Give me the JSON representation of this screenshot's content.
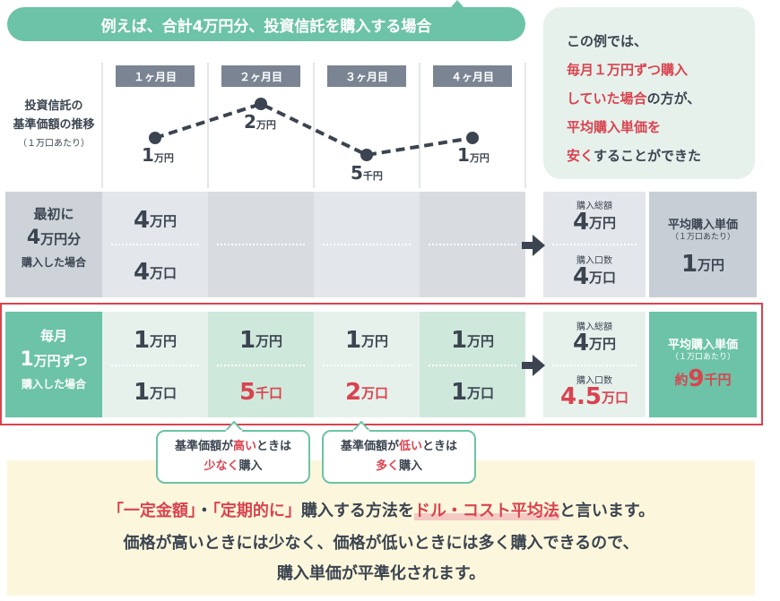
{
  "title": "例えば、合計4万円分、投資信託を購入する場合",
  "example": {
    "line1": "この例では、",
    "line2": "毎月１万円ずつ購入",
    "line3_red": "していた場合",
    "line3_rest": "の方が、",
    "line4": "平均購入単価を",
    "line5_red": "安く",
    "line5_rest": "することができた"
  },
  "chart_label": {
    "line1": "投資信託の",
    "line2": "基準価額の推移",
    "sub": "（１万口あたり）"
  },
  "months": [
    "１ヶ月目",
    "２ヶ月目",
    "３ヶ月目",
    "４ヶ月目"
  ],
  "prices": [
    {
      "num": "1",
      "unit": "万円"
    },
    {
      "num": "2",
      "unit": "万円"
    },
    {
      "num": "5",
      "unit": "千円"
    },
    {
      "num": "1",
      "unit": "万円"
    }
  ],
  "price_values_yen": [
    10000,
    20000,
    5000,
    10000
  ],
  "lump": {
    "head1": "最初に",
    "head2_num": "4",
    "head2_unit": "万円分",
    "head3": "購入した場合",
    "top_num": "4",
    "top_unit": "万円",
    "bottom_num": "4",
    "bottom_unit": "万口",
    "total_label": "購入総額",
    "total_num": "4",
    "total_unit": "万円",
    "qty_label": "購入口数",
    "qty_num": "4",
    "qty_unit": "万口",
    "avg_title": "平均購入単価",
    "avg_sub": "（１万口あたり）",
    "avg_num": "1",
    "avg_unit": "万円"
  },
  "monthly": {
    "head1": "毎月",
    "head2_num": "1",
    "head2_unit": "万円ずつ",
    "head3": "購入した場合",
    "top": [
      {
        "num": "1",
        "unit": "万円"
      },
      {
        "num": "1",
        "unit": "万円"
      },
      {
        "num": "1",
        "unit": "万円"
      },
      {
        "num": "1",
        "unit": "万円"
      }
    ],
    "bottom": [
      {
        "num": "1",
        "unit": "万口"
      },
      {
        "num": "5",
        "unit": "千口"
      },
      {
        "num": "2",
        "unit": "万口"
      },
      {
        "num": "1",
        "unit": "万口"
      }
    ],
    "total_label": "購入総額",
    "total_num": "4",
    "total_unit": "万円",
    "qty_label": "購入口数",
    "qty_num": "4.5",
    "qty_unit": "万口",
    "avg_title": "平均購入単価",
    "avg_sub": "（１万口あたり）",
    "avg_pre": "約",
    "avg_num": "9",
    "avg_unit": "千円"
  },
  "callouts": [
    {
      "pre": "基準価額が",
      "hl": "高い",
      "post": "ときは",
      "l2_hl": "少なく",
      "l2_post": "購入"
    },
    {
      "pre": "基準価額が",
      "hl": "低い",
      "post": "ときは",
      "l2_hl": "多く",
      "l2_post": "購入"
    }
  ],
  "bottom": {
    "q1": "「一定金額」",
    "dot": "・",
    "q2": "「定期的に」",
    "mid": "購入する方法を",
    "dca": "ドル・コスト平均法",
    "end": "と言います。",
    "line2": "価格が高いときには少なく、価格が低いときには多く購入できるので、",
    "line3": "購入単価が平準化されます。"
  },
  "colors": {
    "green": "#6cc3a7",
    "red": "#d9434f",
    "gray_dark": "#7a8492",
    "gray_light": "#e3e6ea",
    "gray_header": "#cdd3d9",
    "mint_light": "#e6f1ec",
    "mint_mid": "#cfe8dc",
    "cream": "#fcf7dc"
  }
}
